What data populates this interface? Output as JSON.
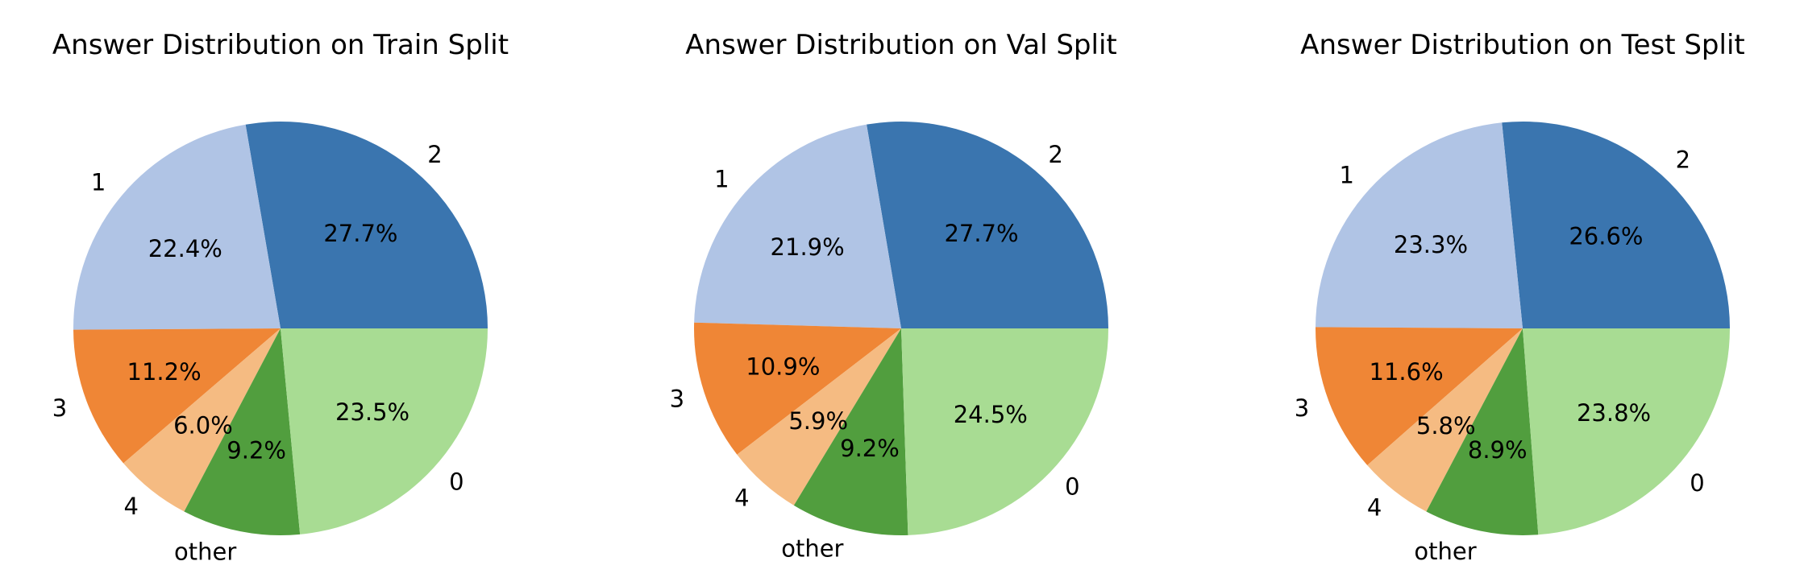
{
  "chart_data": [
    {
      "type": "pie",
      "title": "Answer Distribution on Train Split",
      "categories": [
        "2",
        "1",
        "3",
        "4",
        "other",
        "0"
      ],
      "values": [
        27.7,
        22.4,
        11.2,
        6.0,
        9.2,
        23.5
      ],
      "percent_labels": [
        "27.7%",
        "22.4%",
        "11.2%",
        "6.0%",
        "9.2%",
        "23.5%"
      ],
      "colors": [
        "#3a75af",
        "#b0c4e5",
        "#ef8636",
        "#f5bb82",
        "#519e3e",
        "#a8dc93"
      ],
      "start_angle_deg": 0,
      "direction": "counterclockwise"
    },
    {
      "type": "pie",
      "title": "Answer Distribution on Val Split",
      "categories": [
        "2",
        "1",
        "3",
        "4",
        "other",
        "0"
      ],
      "values": [
        27.7,
        21.9,
        10.9,
        5.9,
        9.2,
        24.5
      ],
      "percent_labels": [
        "27.7%",
        "21.9%",
        "10.9%",
        "5.9%",
        "9.2%",
        "24.5%"
      ],
      "colors": [
        "#3a75af",
        "#b0c4e5",
        "#ef8636",
        "#f5bb82",
        "#519e3e",
        "#a8dc93"
      ],
      "start_angle_deg": 0,
      "direction": "counterclockwise"
    },
    {
      "type": "pie",
      "title": "Answer Distribution on Test Split",
      "categories": [
        "2",
        "1",
        "3",
        "4",
        "other",
        "0"
      ],
      "values": [
        26.6,
        23.3,
        11.6,
        5.8,
        8.9,
        23.8
      ],
      "percent_labels": [
        "26.6%",
        "23.3%",
        "11.6%",
        "5.8%",
        "8.9%",
        "23.8%"
      ],
      "colors": [
        "#3a75af",
        "#b0c4e5",
        "#ef8636",
        "#f5bb82",
        "#519e3e",
        "#a8dc93"
      ],
      "start_angle_deg": 0,
      "direction": "counterclockwise"
    }
  ]
}
